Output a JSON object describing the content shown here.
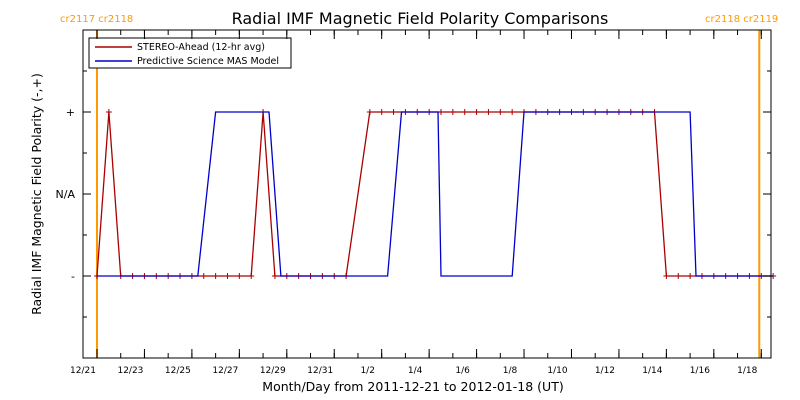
{
  "chart_data": {
    "type": "line",
    "title": "Radial IMF Magnetic Field Polarity Comparisons",
    "xlabel": "Month/Day from 2011-12-21 to 2012-01-18 (UT)",
    "ylabel": "Radial IMF Magnetic Field Polarity (-,+)",
    "x_unit": "date",
    "xlim": [
      "2011-12-21",
      "2012-01-19"
    ],
    "x_ticks": [
      {
        "date": "2011-12-21",
        "label": "12/21"
      },
      {
        "date": "2011-12-23",
        "label": "12/23"
      },
      {
        "date": "2011-12-25",
        "label": "12/25"
      },
      {
        "date": "2011-12-27",
        "label": "12/27"
      },
      {
        "date": "2011-12-29",
        "label": "12/29"
      },
      {
        "date": "2011-12-31",
        "label": "12/31"
      },
      {
        "date": "2012-01-02",
        "label": "1/2"
      },
      {
        "date": "2012-01-04",
        "label": "1/4"
      },
      {
        "date": "2012-01-06",
        "label": "1/6"
      },
      {
        "date": "2012-01-08",
        "label": "1/8"
      },
      {
        "date": "2012-01-10",
        "label": "1/10"
      },
      {
        "date": "2012-01-12",
        "label": "1/12"
      },
      {
        "date": "2012-01-14",
        "label": "1/14"
      },
      {
        "date": "2012-01-16",
        "label": "1/16"
      },
      {
        "date": "2012-01-18",
        "label": "1/18"
      }
    ],
    "y_categories": [
      "-",
      "N/A",
      "+"
    ],
    "y_values_map": {
      "-": -1,
      "N/A": 0,
      "+": 1
    },
    "ylim": [
      -2,
      2
    ],
    "grid": false,
    "legend_position": "top-left",
    "carrington_markers": [
      {
        "date": "2011-12-21",
        "label": "cr2117 cr2118",
        "color": "#ff9900"
      },
      {
        "date": "2012-01-18",
        "label": "cr2118 cr2119",
        "color": "#ff9900"
      }
    ],
    "series": [
      {
        "name": "STEREO-Ahead (12-hr avg)",
        "color": "#aa0000",
        "markers": true,
        "points": [
          [
            "2011-12-21 00:00",
            -1
          ],
          [
            "2011-12-21 12:00",
            1
          ],
          [
            "2011-12-22 00:00",
            -1
          ],
          [
            "2011-12-22 12:00",
            -1
          ],
          [
            "2011-12-23 00:00",
            -1
          ],
          [
            "2011-12-23 12:00",
            -1
          ],
          [
            "2011-12-24 00:00",
            -1
          ],
          [
            "2011-12-24 12:00",
            -1
          ],
          [
            "2011-12-25 00:00",
            -1
          ],
          [
            "2011-12-25 12:00",
            -1
          ],
          [
            "2011-12-26 00:00",
            -1
          ],
          [
            "2011-12-26 12:00",
            -1
          ],
          [
            "2011-12-27 00:00",
            -1
          ],
          [
            "2011-12-27 12:00",
            -1
          ],
          [
            "2011-12-28 00:00",
            1
          ],
          [
            "2011-12-28 12:00",
            -1
          ],
          [
            "2011-12-29 00:00",
            -1
          ],
          [
            "2011-12-29 12:00",
            -1
          ],
          [
            "2011-12-30 00:00",
            -1
          ],
          [
            "2011-12-30 12:00",
            -1
          ],
          [
            "2011-12-31 00:00",
            -1
          ],
          [
            "2011-12-31 12:00",
            -1
          ],
          [
            "2012-01-01 12:00",
            1
          ],
          [
            "2012-01-02 00:00",
            1
          ],
          [
            "2012-01-02 12:00",
            1
          ],
          [
            "2012-01-03 00:00",
            1
          ],
          [
            "2012-01-03 12:00",
            1
          ],
          [
            "2012-01-04 00:00",
            1
          ],
          [
            "2012-01-04 12:00",
            1
          ],
          [
            "2012-01-05 00:00",
            1
          ],
          [
            "2012-01-05 12:00",
            1
          ],
          [
            "2012-01-06 00:00",
            1
          ],
          [
            "2012-01-06 12:00",
            1
          ],
          [
            "2012-01-07 00:00",
            1
          ],
          [
            "2012-01-07 12:00",
            1
          ],
          [
            "2012-01-08 00:00",
            1
          ],
          [
            "2012-01-08 12:00",
            1
          ],
          [
            "2012-01-09 00:00",
            1
          ],
          [
            "2012-01-09 12:00",
            1
          ],
          [
            "2012-01-10 00:00",
            1
          ],
          [
            "2012-01-10 12:00",
            1
          ],
          [
            "2012-01-11 00:00",
            1
          ],
          [
            "2012-01-11 12:00",
            1
          ],
          [
            "2012-01-12 00:00",
            1
          ],
          [
            "2012-01-12 12:00",
            1
          ],
          [
            "2012-01-13 00:00",
            1
          ],
          [
            "2012-01-13 12:00",
            1
          ],
          [
            "2012-01-14 00:00",
            -1
          ],
          [
            "2012-01-14 12:00",
            -1
          ],
          [
            "2012-01-15 00:00",
            -1
          ],
          [
            "2012-01-15 12:00",
            -1
          ],
          [
            "2012-01-16 00:00",
            -1
          ],
          [
            "2012-01-16 12:00",
            -1
          ],
          [
            "2012-01-17 00:00",
            -1
          ],
          [
            "2012-01-17 12:00",
            -1
          ],
          [
            "2012-01-18 00:00",
            -1
          ],
          [
            "2012-01-18 12:00",
            -1
          ]
        ]
      },
      {
        "name": "Predictive Science MAS Model",
        "color": "#0000cc",
        "markers": false,
        "points": [
          [
            "2011-12-21 00:00",
            -1
          ],
          [
            "2011-12-25 06:00",
            -1
          ],
          [
            "2011-12-26 00:00",
            1
          ],
          [
            "2011-12-28 06:00",
            1
          ],
          [
            "2011-12-28 18:00",
            -1
          ],
          [
            "2012-01-02 06:00",
            -1
          ],
          [
            "2012-01-02 20:00",
            1
          ],
          [
            "2012-01-04 09:00",
            1
          ],
          [
            "2012-01-04 12:00",
            -1
          ],
          [
            "2012-01-07 12:00",
            -1
          ],
          [
            "2012-01-08 00:00",
            1
          ],
          [
            "2012-01-15 00:00",
            1
          ],
          [
            "2012-01-15 06:00",
            -1
          ],
          [
            "2012-01-18 12:00",
            -1
          ]
        ]
      }
    ]
  }
}
